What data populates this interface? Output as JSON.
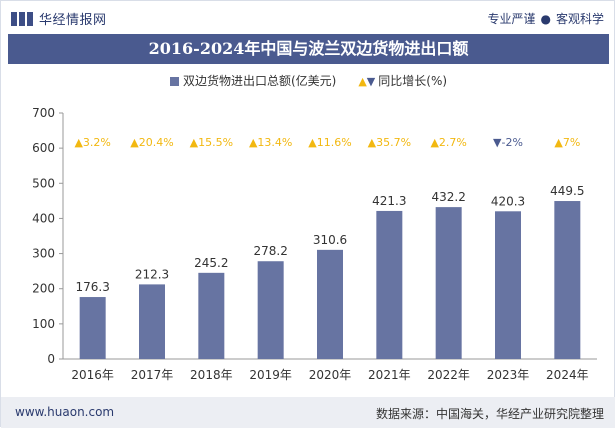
{
  "header": {
    "brand": "华经情报网",
    "slogan_left": "专业严谨",
    "slogan_right": "客观科学"
  },
  "footer": {
    "url": "www.huaon.com",
    "source": "数据来源：中国海关，华经产业研究院整理"
  },
  "colors": {
    "bar": "#6774a2",
    "up": "#f2b811",
    "down": "#4a5a8f",
    "title_bg": "#4a5a8f"
  },
  "chart_data": {
    "type": "bar",
    "title": "2016-2024年中国与波兰双边货物进出口额",
    "legend": {
      "bar": "双边货物进出口总额(亿美元)",
      "growth": "同比增长(%)"
    },
    "legend_placement": "top-center",
    "categories": [
      "2016年",
      "2017年",
      "2018年",
      "2019年",
      "2020年",
      "2021年",
      "2022年",
      "2023年",
      "2024年"
    ],
    "series": [
      {
        "name": "双边货物进出口总额(亿美元)",
        "values": [
          176.3,
          212.3,
          245.2,
          278.2,
          310.6,
          421.3,
          432.2,
          420.3,
          449.5
        ]
      }
    ],
    "growth": [
      "3.2%",
      "20.4%",
      "15.5%",
      "13.4%",
      "11.6%",
      "35.7%",
      "2.7%",
      "-2%",
      "7%"
    ],
    "growth_direction": [
      "up",
      "up",
      "up",
      "up",
      "up",
      "up",
      "up",
      "down",
      "up"
    ],
    "yticks": [
      0,
      100,
      200,
      300,
      400,
      500,
      600,
      700
    ],
    "ylim": [
      0,
      700
    ],
    "grid": false
  }
}
